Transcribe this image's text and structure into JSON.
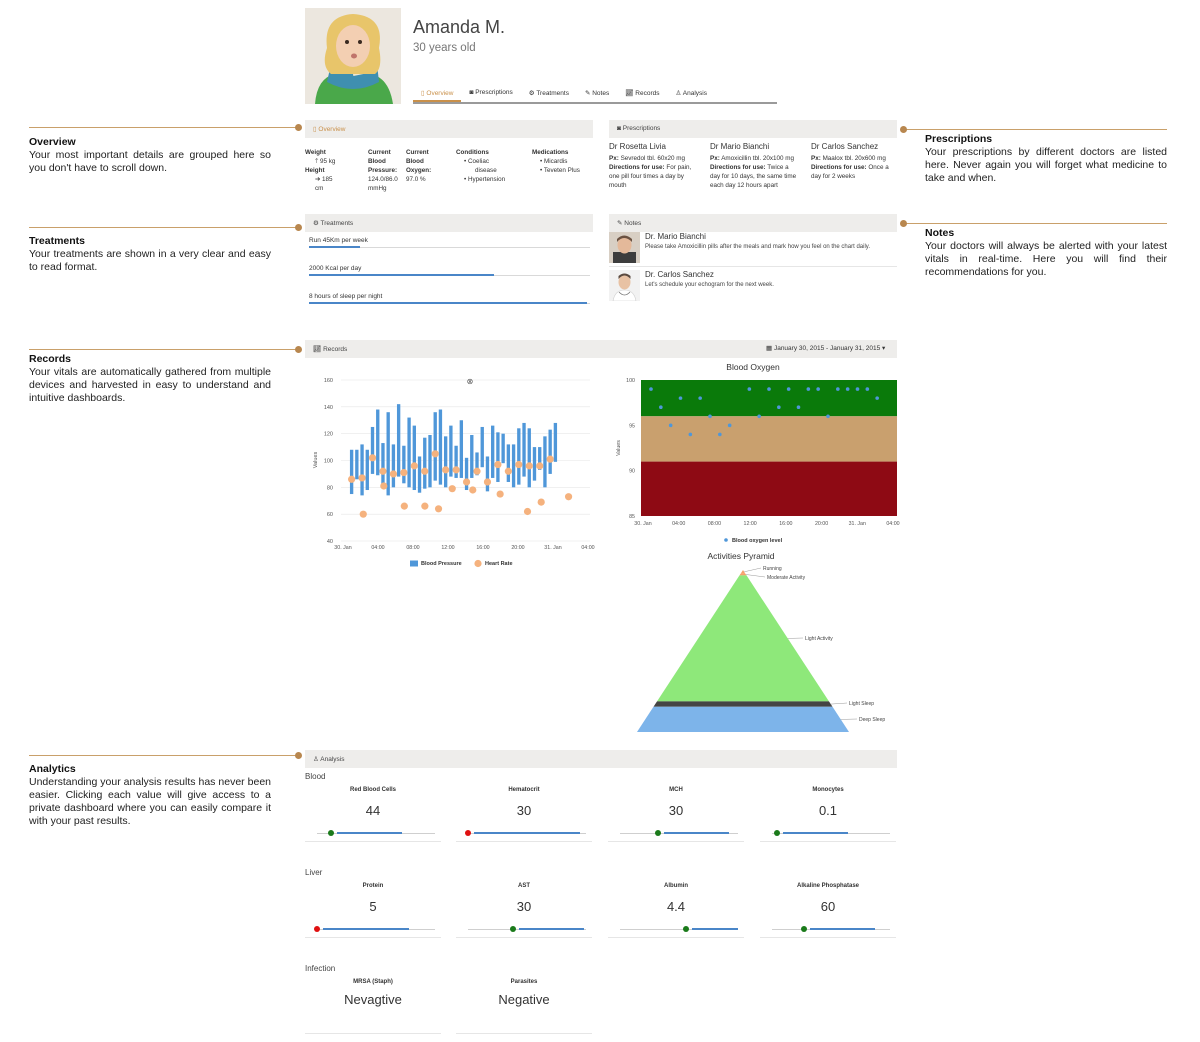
{
  "profile": {
    "name": "Amanda M.",
    "age": "30 years old"
  },
  "tabs": [
    {
      "label": "Overview",
      "icon": "overview-icon"
    },
    {
      "label": "Prescriptions",
      "icon": "camera-icon"
    },
    {
      "label": "Treatments",
      "icon": "gears-icon"
    },
    {
      "label": "Notes",
      "icon": "pencil-icon"
    },
    {
      "label": "Records",
      "icon": "chart-icon"
    },
    {
      "label": "Analysis",
      "icon": "flask-icon"
    }
  ],
  "callouts": {
    "overview": {
      "title": "Overview",
      "text": "Your most important details are grouped here so you don't have to scroll down."
    },
    "prescriptions": {
      "title": "Prescriptions",
      "text": "Your prescriptions by different doctors are listed here. Never again you will forget what medicine to take and when."
    },
    "treatments": {
      "title": "Treatments",
      "text": "Your treatments are shown in a very clear and easy to read format."
    },
    "notes": {
      "title": "Notes",
      "text": "Your doctors will always be alerted with your latest vitals in real-time. Here you will find their recommendations for you."
    },
    "records": {
      "title": "Records",
      "text": "Your vitals are automatically gathered from multiple devices and harvested in easy to understand and intuitive dashboards."
    },
    "analytics": {
      "title": "Analytics",
      "text": "Understanding your analysis results has never been easier. Clicking each value will give access to a private dashboard where you can easily compare it with your past results."
    }
  },
  "overview": {
    "title": "Overview",
    "weight_label": "Weight",
    "weight_value": "95 kg",
    "height_label": "Height",
    "height_value": "185",
    "height_unit": "cm",
    "bp_label_1": "Current",
    "bp_label_2": "Blood",
    "bp_label_3": "Pressure:",
    "bp_value": "124.0/86.0",
    "bp_unit": "mmHg",
    "ox_label_1": "Current",
    "ox_label_2": "Blood",
    "ox_label_3": "Oxygen:",
    "ox_value": "97.0 %",
    "conditions_label": "Conditions",
    "conditions": [
      "Coeliac",
      "disease",
      "Hypertension"
    ],
    "medications_label": "Medications",
    "medications": [
      "Micardis",
      "Teveten Plus"
    ]
  },
  "prescriptions": {
    "title": "Prescriptions",
    "rx_label": "Px:",
    "directions_label": "Directions for use:",
    "doctors": [
      {
        "name": "Dr Rosetta Livia",
        "px": "Sevredol tbl. 60x20 mg",
        "directions": "For pain, one pill four times a day by mouth"
      },
      {
        "name": "Dr Mario Bianchi",
        "px": "Amoxicillin tbl. 20x100 mg",
        "directions": "Twice a day for 10 days, the same time each day 12 hours apart"
      },
      {
        "name": "Dr Carlos Sanchez",
        "px": "Maalox tbl. 20x600 mg",
        "directions": "Once a day for 2 weeks"
      }
    ]
  },
  "treatments": {
    "title": "Treatments",
    "items": [
      {
        "label": "Run 45Km per week",
        "progress": 0.18
      },
      {
        "label": "2000 Kcal per day",
        "progress": 0.66
      },
      {
        "label": "8 hours of sleep per night",
        "progress": 0.99
      }
    ]
  },
  "notes": {
    "title": "Notes",
    "items": [
      {
        "doctor": "Dr. Mario Bianchi",
        "text": "Please take Amoxicillin pills after the meals and mark how you feel on the chart daily."
      },
      {
        "doctor": "Dr. Carlos Sanchez",
        "text": "Let's schedule your echogram for the next week."
      }
    ]
  },
  "records": {
    "title": "Records",
    "date_range": "January 30, 2015 - January 31, 2015"
  },
  "colors": {
    "accent": "#c9904a",
    "bar_blue": "#4f97d9",
    "heart_orange": "#f5b27e",
    "ox_green": "#0a7a0a",
    "ox_tan": "#c9a06e",
    "ox_red": "#8e0a14",
    "pyr_green": "#8ee87a",
    "pyr_blue": "#7db4ea",
    "pyr_dark": "#444444",
    "pyr_orange": "#f5a06a"
  },
  "chart_data": [
    {
      "type": "bar",
      "title": "",
      "ylabel": "Values",
      "ylim": [
        40,
        160
      ],
      "yticks": [
        40,
        60,
        80,
        100,
        120,
        140,
        160
      ],
      "xticks": [
        "30. Jan",
        "04:00",
        "08:00",
        "12:00",
        "16:00",
        "20:00",
        "31. Jan",
        "04:00"
      ],
      "legend": [
        "Blood Pressure",
        "Heart Rate"
      ],
      "series": [
        {
          "name": "Blood Pressure",
          "ranges": [
            [
              75,
              108
            ],
            [
              86,
              108
            ],
            [
              74,
              112
            ],
            [
              78,
              108
            ],
            [
              90,
              125
            ],
            [
              89,
              138
            ],
            [
              82,
              113
            ],
            [
              74,
              136
            ],
            [
              80,
              112
            ],
            [
              88,
              142
            ],
            [
              83,
              111
            ],
            [
              80,
              132
            ],
            [
              78,
              126
            ],
            [
              76,
              103
            ],
            [
              79,
              117
            ],
            [
              80,
              119
            ],
            [
              85,
              136
            ],
            [
              82,
              138
            ],
            [
              80,
              118
            ],
            [
              88,
              126
            ],
            [
              87,
              111
            ],
            [
              87,
              130
            ],
            [
              78,
              102
            ],
            [
              87,
              119
            ],
            [
              89,
              106
            ],
            [
              95,
              125
            ],
            [
              77,
              103
            ],
            [
              87,
              126
            ],
            [
              84,
              121
            ],
            [
              98,
              120
            ],
            [
              84,
              112
            ],
            [
              80,
              112
            ],
            [
              82,
              124
            ],
            [
              88,
              128
            ],
            [
              80,
              124
            ],
            [
              85,
              110
            ],
            [
              93,
              110
            ],
            [
              80,
              118
            ],
            [
              90,
              123
            ],
            [
              99,
              128
            ]
          ]
        },
        {
          "name": "Heart Rate",
          "values": [
            null,
            60,
            null,
            null,
            81,
            null,
            null,
            66,
            null,
            null,
            66,
            null,
            64,
            null,
            79,
            null,
            null,
            78,
            null,
            null,
            null,
            75,
            null,
            null,
            null,
            62,
            null,
            69,
            null,
            null,
            null,
            73
          ]
        }
      ]
    },
    {
      "type": "scatter",
      "title": "Blood Oxygen",
      "ylabel": "Values",
      "ylim": [
        85,
        100
      ],
      "yticks": [
        85,
        90,
        95,
        100
      ],
      "xticks": [
        "30. Jan",
        "04:00",
        "08:00",
        "12:00",
        "16:00",
        "20:00",
        "31. Jan",
        "04:00"
      ],
      "bands": [
        {
          "from": 96,
          "to": 100,
          "color": "green"
        },
        {
          "from": 91,
          "to": 96,
          "color": "tan"
        },
        {
          "from": 85,
          "to": 91,
          "color": "red"
        }
      ],
      "legend": [
        "Blood oxygen level"
      ],
      "series": [
        {
          "name": "Blood oxygen level",
          "values": [
            99,
            97,
            95,
            98,
            94,
            98,
            96,
            94,
            95,
            null,
            99,
            96,
            99,
            97,
            99,
            97,
            99,
            99,
            96,
            99,
            99,
            99,
            99,
            98
          ]
        }
      ]
    },
    {
      "type": "pyramid",
      "title": "Activities Pyramid",
      "labels": [
        "Running",
        "Moderate Activity",
        "Light Activity",
        "Light Sleep",
        "Deep Sleep"
      ],
      "values": [
        2,
        1,
        70,
        3,
        14
      ]
    }
  ],
  "analysis": {
    "title": "Analysis",
    "sections": [
      {
        "label": "Blood",
        "items": [
          {
            "label": "Red Blood Cells",
            "value": "44",
            "level": 0.12,
            "status": "normal"
          },
          {
            "label": "Hematocrit",
            "value": "30",
            "level": 0.0,
            "status": "alert"
          },
          {
            "label": "MCH",
            "value": "30",
            "level": 0.32,
            "status": "normal"
          },
          {
            "label": "Monocytes",
            "value": "0.1",
            "level": 0.04,
            "status": "normal"
          }
        ]
      },
      {
        "label": "Liver",
        "items": [
          {
            "label": "Protein",
            "value": "5",
            "level": 0.0,
            "status": "alert"
          },
          {
            "label": "AST",
            "value": "30",
            "level": 0.38,
            "status": "normal"
          },
          {
            "label": "Albumin",
            "value": "4.4",
            "level": 0.56,
            "status": "normal"
          },
          {
            "label": "Alkaline Phosphatase",
            "value": "60",
            "level": 0.27,
            "status": "normal"
          }
        ]
      },
      {
        "label": "Infection",
        "items": [
          {
            "label": "MRSA (Staph)",
            "value": "Nevagtive"
          },
          {
            "label": "Parasites",
            "value": "Negative"
          }
        ]
      }
    ]
  }
}
